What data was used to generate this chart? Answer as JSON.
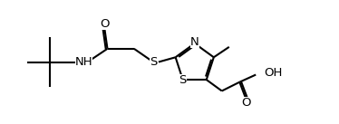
{
  "background_color": "#ffffff",
  "line_color": "#000000",
  "line_width": 1.5,
  "font_size": 9.5,
  "xlim": [
    0,
    10.5
  ],
  "ylim": [
    0,
    4.2
  ],
  "figsize": [
    3.74,
    1.37
  ],
  "dpi": 100
}
